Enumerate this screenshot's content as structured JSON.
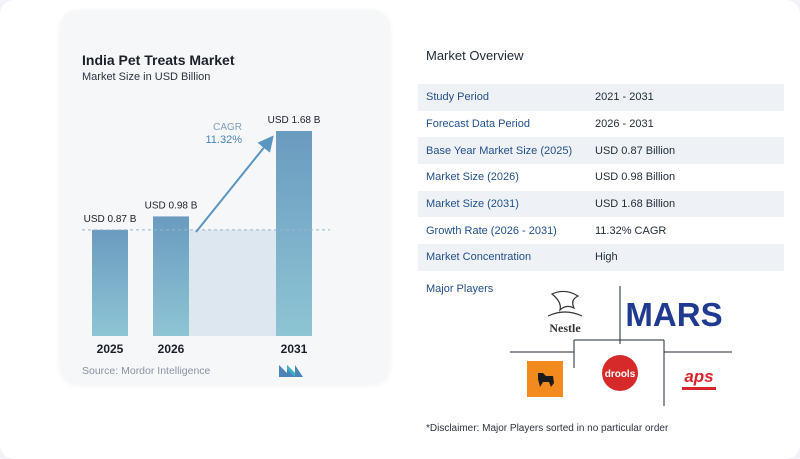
{
  "chart_data": {
    "type": "bar",
    "title": "India Pet Treats Market",
    "subtitle": "Market Size in USD Billion",
    "categories": [
      "2025",
      "2026",
      "2031"
    ],
    "values": [
      0.87,
      0.98,
      1.68
    ],
    "data_labels": [
      "USD 0.87 B",
      "USD 0.98 B",
      "USD 1.68 B"
    ],
    "cagr_label": "CAGR",
    "cagr_value": "11.32%",
    "source": "Source:  Mordor Intelligence",
    "bar_color": "#6a9bc0",
    "bar_color_light": "#8ec5d4",
    "accent_color": "#5a96c2"
  },
  "overview": {
    "title": "Market Overview",
    "rows": [
      {
        "label": "Study Period",
        "value": "2021 - 2031"
      },
      {
        "label": "Forecast Data Period",
        "value": "2026 - 2031"
      },
      {
        "label": "Base Year Market Size (2025)",
        "value": "USD 0.87 Billion"
      },
      {
        "label": "Market Size (2026)",
        "value": "USD 0.98 Billion"
      },
      {
        "label": "Market Size (2031)",
        "value": "USD 1.68 Billion"
      },
      {
        "label": "Growth Rate (2026 - 2031)",
        "value": "11.32% CAGR"
      },
      {
        "label": "Market Concentration",
        "value": "High"
      }
    ]
  },
  "players": {
    "title": "Major Players",
    "logos": [
      "Nestle",
      "MARS",
      "drools",
      "aps"
    ],
    "disclaimer": "*Disclaimer: Major Players sorted in no particular order"
  }
}
